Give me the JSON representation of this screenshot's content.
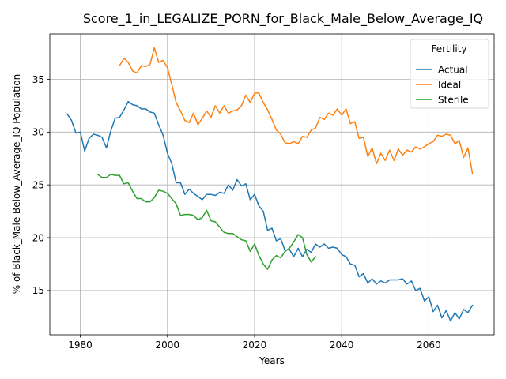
{
  "chart_data": {
    "type": "line",
    "title": "Score_1_in_LEGALIZE_PORN_for_Black_Male_Below_Average_IQ",
    "xlabel": "Years",
    "ylabel": "% of Black_Male Below_Average_IQ Population",
    "xlim": [
      1973,
      2075
    ],
    "ylim": [
      10.8,
      39.3
    ],
    "xticks": [
      1980,
      2000,
      2020,
      2040,
      2060
    ],
    "yticks": [
      15,
      20,
      25,
      30,
      35
    ],
    "grid": true,
    "legend": {
      "title": "Fertility",
      "placement": "top-right"
    },
    "series": [
      {
        "name": "Actual",
        "color": "#1f77b4",
        "x": [
          1977,
          1978,
          1979,
          1980,
          1981,
          1982,
          1983,
          1984,
          1985,
          1986,
          1987,
          1988,
          1989,
          1990,
          1991,
          1992,
          1993,
          1994,
          1995,
          1996,
          1997,
          1998,
          1999,
          2000,
          2001,
          2002,
          2003,
          2004,
          2005,
          2006,
          2007,
          2008,
          2009,
          2010,
          2011,
          2012,
          2013,
          2014,
          2015,
          2016,
          2017,
          2018,
          2019,
          2020,
          2021,
          2022,
          2023,
          2024,
          2025,
          2026,
          2027,
          2028,
          2029,
          2030,
          2031,
          2032,
          2033,
          2034,
          2035,
          2036,
          2037,
          2038,
          2039,
          2040,
          2041,
          2042,
          2043,
          2044,
          2045,
          2046,
          2047,
          2048,
          2049,
          2050,
          2051,
          2052,
          2053,
          2054,
          2055,
          2056,
          2057,
          2058,
          2059,
          2060,
          2061,
          2062,
          2063,
          2064,
          2065,
          2066,
          2067,
          2068,
          2069,
          2070
        ],
        "y": [
          31.7,
          31.1,
          29.9,
          30.0,
          28.2,
          29.4,
          29.8,
          29.7,
          29.5,
          28.5,
          30.1,
          31.3,
          31.4,
          32.1,
          32.9,
          32.6,
          32.5,
          32.2,
          32.2,
          31.9,
          31.8,
          30.7,
          29.7,
          28.0,
          27.0,
          25.2,
          25.2,
          24.1,
          24.6,
          24.2,
          23.9,
          23.6,
          24.1,
          24.1,
          24.0,
          24.3,
          24.2,
          25.0,
          24.5,
          25.5,
          24.9,
          25.1,
          23.6,
          24.1,
          23.0,
          22.5,
          20.7,
          20.9,
          19.7,
          19.9,
          18.8,
          18.9,
          18.2,
          19.0,
          18.2,
          18.9,
          18.6,
          19.4,
          19.1,
          19.4,
          19.0,
          19.1,
          19.0,
          18.4,
          18.2,
          17.5,
          17.4,
          16.3,
          16.6,
          15.7,
          16.1,
          15.6,
          15.9,
          15.7,
          16.0,
          16.0,
          16.0,
          16.1,
          15.6,
          15.9,
          15.0,
          15.2,
          14.0,
          14.4,
          13.0,
          13.6,
          12.4,
          13.1,
          12.1,
          12.9,
          12.3,
          13.2,
          12.9,
          13.6
        ]
      },
      {
        "name": "Ideal",
        "color": "#ff7f0e",
        "x": [
          1989,
          1990,
          1991,
          1992,
          1993,
          1994,
          1995,
          1996,
          1997,
          1998,
          1999,
          2000,
          2001,
          2002,
          2003,
          2004,
          2005,
          2006,
          2007,
          2008,
          2009,
          2010,
          2011,
          2012,
          2013,
          2014,
          2015,
          2016,
          2017,
          2018,
          2019,
          2020,
          2021,
          2022,
          2023,
          2024,
          2025,
          2026,
          2027,
          2028,
          2029,
          2030,
          2031,
          2032,
          2033,
          2034,
          2035,
          2036,
          2037,
          2038,
          2039,
          2040,
          2041,
          2042,
          2043,
          2044,
          2045,
          2046,
          2047,
          2048,
          2049,
          2050,
          2051,
          2052,
          2053,
          2054,
          2055,
          2056,
          2057,
          2058,
          2059,
          2060,
          2061,
          2062,
          2063,
          2064,
          2065,
          2066,
          2067,
          2068,
          2069,
          2070
        ],
        "y": [
          36.3,
          37.0,
          36.6,
          35.8,
          35.6,
          36.3,
          36.2,
          36.4,
          38.0,
          36.6,
          36.8,
          36.1,
          34.5,
          32.8,
          32.0,
          31.1,
          30.9,
          31.8,
          30.7,
          31.3,
          32.0,
          31.4,
          32.5,
          31.8,
          32.5,
          31.8,
          32.0,
          32.1,
          32.5,
          33.5,
          32.8,
          33.7,
          33.7,
          32.8,
          32.1,
          31.2,
          30.2,
          29.8,
          29.0,
          28.9,
          29.1,
          28.9,
          29.6,
          29.5,
          30.2,
          30.4,
          31.4,
          31.2,
          31.8,
          31.6,
          32.2,
          31.6,
          32.2,
          30.8,
          31.0,
          29.4,
          29.5,
          27.7,
          28.5,
          27.0,
          28.0,
          27.3,
          28.3,
          27.3,
          28.4,
          27.8,
          28.3,
          28.1,
          28.6,
          28.4,
          28.6,
          28.9,
          29.1,
          29.7,
          29.6,
          29.8,
          29.7,
          28.9,
          29.2,
          27.6,
          28.5,
          26.1
        ]
      },
      {
        "name": "Sterile",
        "color": "#2ca02c",
        "x": [
          1984,
          1985,
          1986,
          1987,
          1988,
          1989,
          1990,
          1991,
          1992,
          1993,
          1994,
          1995,
          1996,
          1997,
          1998,
          1999,
          2000,
          2001,
          2002,
          2003,
          2004,
          2005,
          2006,
          2007,
          2008,
          2009,
          2010,
          2011,
          2012,
          2013,
          2014,
          2015,
          2016,
          2017,
          2018,
          2019,
          2020,
          2021,
          2022,
          2023,
          2024,
          2025,
          2026,
          2027,
          2028,
          2029,
          2030,
          2031,
          2032,
          2033,
          2034
        ],
        "y": [
          26.0,
          25.7,
          25.7,
          26.0,
          25.9,
          25.9,
          25.1,
          25.2,
          24.4,
          23.7,
          23.7,
          23.4,
          23.4,
          23.8,
          24.5,
          24.4,
          24.2,
          23.7,
          23.2,
          22.1,
          22.2,
          22.2,
          22.1,
          21.7,
          21.9,
          22.6,
          21.6,
          21.5,
          21.0,
          20.5,
          20.4,
          20.4,
          20.1,
          19.8,
          19.7,
          18.7,
          19.4,
          18.3,
          17.5,
          17.0,
          17.9,
          18.3,
          18.1,
          18.7,
          19.0,
          19.6,
          20.3,
          20.0,
          18.4,
          17.7,
          18.2
        ]
      }
    ]
  }
}
